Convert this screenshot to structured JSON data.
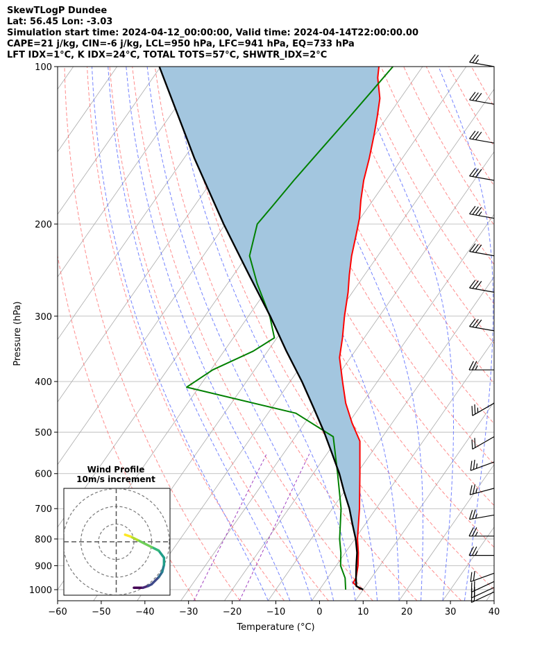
{
  "header": {
    "line1": "SkewTLogP Dundee",
    "line2": "Lat: 56.45   Lon: -3.03",
    "line3": "Simulation start time: 2024-04-12_00:00:00, Valid time: 2024-04-14T22:00:00.00",
    "line4": "CAPE=21 j/kg, CIN=-6 j/kg, LCL=950 hPa, LFC=941 hPa, EQ=733 hPa",
    "line5": "LFT IDX=1°C, K IDX=24°C, TOTAL TOTS=57°C, SHWTR_IDX=2°C"
  },
  "chart_data": {
    "type": "line",
    "xlabel": "Temperature (°C)",
    "ylabel": "Pressure (hPa)",
    "xlim": [
      -60,
      40
    ],
    "ylim": [
      1050,
      100
    ],
    "y_scale": "log",
    "skewed_temperature_axis": true,
    "x_ticks": [
      "−60",
      "−50",
      "−40",
      "−30",
      "−20",
      "−10",
      "0",
      "10",
      "20",
      "30",
      "40"
    ],
    "y_ticks": [
      100,
      200,
      300,
      400,
      500,
      600,
      700,
      800,
      900,
      1000
    ],
    "grid": true,
    "colors": {
      "temperature": "#ff0000",
      "dewpoint": "#008000",
      "parcel": "#000000",
      "cape_fill": "#a3c6df",
      "dry_adiabats": "#ff6666",
      "moist_adiabats": "#5b6cff",
      "mixing_ratio": "#a040c0",
      "isotherms": "#aaaaaa"
    },
    "series": [
      {
        "role": "temperature",
        "points": [
          [
            1000,
            9.4
          ],
          [
            970,
            6.6
          ],
          [
            950,
            6.5
          ],
          [
            900,
            5.0
          ],
          [
            850,
            3.0
          ],
          [
            800,
            0.6
          ],
          [
            700,
            -3.8
          ],
          [
            600,
            -9.3
          ],
          [
            520,
            -14.5
          ],
          [
            480,
            -19.2
          ],
          [
            440,
            -23.8
          ],
          [
            400,
            -28.0
          ],
          [
            360,
            -32.5
          ],
          [
            330,
            -35.0
          ],
          [
            300,
            -38.0
          ],
          [
            270,
            -41.0
          ],
          [
            250,
            -43.5
          ],
          [
            230,
            -46.0
          ],
          [
            210,
            -48.3
          ],
          [
            195,
            -50.2
          ],
          [
            180,
            -52.8
          ],
          [
            165,
            -55.3
          ],
          [
            150,
            -57.5
          ],
          [
            135,
            -60.2
          ],
          [
            125,
            -62.3
          ],
          [
            115,
            -64.7
          ],
          [
            105,
            -68.5
          ],
          [
            100,
            -70.0
          ]
        ]
      },
      {
        "role": "dewpoint",
        "points": [
          [
            1000,
            6.0
          ],
          [
            950,
            4.0
          ],
          [
            900,
            1.0
          ],
          [
            850,
            -1.0
          ],
          [
            800,
            -3.5
          ],
          [
            700,
            -8.0
          ],
          [
            600,
            -14.4
          ],
          [
            510,
            -21.3
          ],
          [
            460,
            -33.6
          ],
          [
            410,
            -62.8
          ],
          [
            380,
            -59.6
          ],
          [
            350,
            -53.3
          ],
          [
            330,
            -50.6
          ],
          [
            300,
            -55.1
          ],
          [
            260,
            -63.2
          ],
          [
            230,
            -69.4
          ],
          [
            200,
            -72.7
          ],
          [
            185,
            -72.1
          ],
          [
            165,
            -71.3
          ],
          [
            145,
            -70.1
          ],
          [
            125,
            -68.7
          ],
          [
            110,
            -67.6
          ],
          [
            100,
            -66.8
          ]
        ]
      },
      {
        "role": "parcel",
        "points": [
          [
            1000,
            10.0
          ],
          [
            985,
            7.9
          ],
          [
            950,
            6.5
          ],
          [
            900,
            4.6
          ],
          [
            850,
            2.7
          ],
          [
            800,
            0.2
          ],
          [
            750,
            -2.9
          ],
          [
            700,
            -6.1
          ],
          [
            650,
            -10.0
          ],
          [
            600,
            -14.0
          ],
          [
            550,
            -18.8
          ],
          [
            500,
            -24.1
          ],
          [
            450,
            -30.3
          ],
          [
            400,
            -37.3
          ],
          [
            350,
            -45.7
          ],
          [
            300,
            -55.0
          ],
          [
            250,
            -66.5
          ],
          [
            200,
            -80.4
          ],
          [
            150,
            -97.5
          ],
          [
            100,
            -120.3
          ]
        ]
      }
    ],
    "wind_barbs": [
      {
        "pressure": 100,
        "speed_kt": 25,
        "direction_deg": 280
      },
      {
        "pressure": 118,
        "speed_kt": 30,
        "direction_deg": 280
      },
      {
        "pressure": 140,
        "speed_kt": 30,
        "direction_deg": 280
      },
      {
        "pressure": 165,
        "speed_kt": 30,
        "direction_deg": 280
      },
      {
        "pressure": 195,
        "speed_kt": 35,
        "direction_deg": 280
      },
      {
        "pressure": 230,
        "speed_kt": 30,
        "direction_deg": 280
      },
      {
        "pressure": 270,
        "speed_kt": 30,
        "direction_deg": 280
      },
      {
        "pressure": 320,
        "speed_kt": 30,
        "direction_deg": 280
      },
      {
        "pressure": 380,
        "speed_kt": 25,
        "direction_deg": 270
      },
      {
        "pressure": 440,
        "speed_kt": 25,
        "direction_deg": 240
      },
      {
        "pressure": 510,
        "speed_kt": 20,
        "direction_deg": 240
      },
      {
        "pressure": 570,
        "speed_kt": 25,
        "direction_deg": 250
      },
      {
        "pressure": 640,
        "speed_kt": 25,
        "direction_deg": 255
      },
      {
        "pressure": 720,
        "speed_kt": 25,
        "direction_deg": 260
      },
      {
        "pressure": 790,
        "speed_kt": 25,
        "direction_deg": 270
      },
      {
        "pressure": 860,
        "speed_kt": 25,
        "direction_deg": 270
      },
      {
        "pressure": 930,
        "speed_kt": 20,
        "direction_deg": 250
      },
      {
        "pressure": 965,
        "speed_kt": 20,
        "direction_deg": 245
      },
      {
        "pressure": 990,
        "speed_kt": 20,
        "direction_deg": 245
      },
      {
        "pressure": 1010,
        "speed_kt": 20,
        "direction_deg": 245
      }
    ],
    "hodograph": {
      "title": "Wind Profile",
      "subtitle": "10m/s increment",
      "ring_interval_ms": 10,
      "colormap": "viridis",
      "points": [
        [
          5,
          4
        ],
        [
          8,
          3
        ],
        [
          12,
          1
        ],
        [
          16,
          -1
        ],
        [
          20,
          -3
        ],
        [
          24,
          -5
        ],
        [
          27,
          -9
        ],
        [
          27,
          -13
        ],
        [
          26,
          -17
        ],
        [
          24,
          -20
        ],
        [
          20,
          -24
        ],
        [
          18,
          -25
        ],
        [
          15,
          -26
        ],
        [
          12,
          -26
        ],
        [
          10,
          -26
        ]
      ]
    }
  }
}
